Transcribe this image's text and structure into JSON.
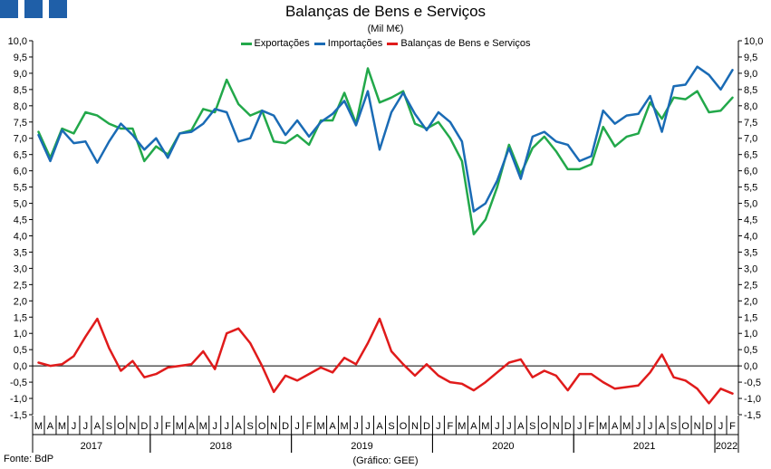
{
  "header": {
    "title": "Balanças de Bens e Serviços",
    "subtitle": "(Mil M€)",
    "squares": [
      "#1f5fa8",
      "#1f5fa8",
      "#1f5fa8"
    ]
  },
  "footer": {
    "source": "Fonte: BdP",
    "credit": "(Gráfico: GEE)"
  },
  "chart_data": {
    "type": "line",
    "title": "Balanças de Bens e Serviços",
    "subtitle": "(Mil M€)",
    "ylim": [
      -1.5,
      10.0
    ],
    "ytick_step": 0.5,
    "y_ticks": [
      "10,0",
      "9,5",
      "9,0",
      "8,5",
      "8,0",
      "7,5",
      "7,0",
      "6,5",
      "6,0",
      "5,5",
      "5,0",
      "4,5",
      "4,0",
      "3,5",
      "3,0",
      "2,5",
      "2,0",
      "1,5",
      "1,0",
      "0,5",
      "0,0",
      "-0,5",
      "-1,0",
      "-1,5"
    ],
    "grid": false,
    "legend_position": "top-center",
    "month_labels": [
      "M",
      "A",
      "M",
      "J",
      "J",
      "A",
      "S",
      "O",
      "N",
      "D",
      "J",
      "F",
      "M",
      "A",
      "M",
      "J",
      "J",
      "A",
      "S",
      "O",
      "N",
      "D",
      "J",
      "F",
      "M",
      "A",
      "M",
      "J",
      "J",
      "A",
      "S",
      "O",
      "N",
      "D",
      "J",
      "F",
      "M",
      "A",
      "M",
      "J",
      "J",
      "A",
      "S",
      "O",
      "N",
      "D",
      "J",
      "F",
      "M",
      "A",
      "M",
      "J",
      "J",
      "A",
      "S",
      "O",
      "N",
      "D",
      "J",
      "F"
    ],
    "years": [
      {
        "label": "2017",
        "start": 0,
        "count": 10
      },
      {
        "label": "2018",
        "start": 10,
        "count": 12
      },
      {
        "label": "2019",
        "start": 22,
        "count": 12
      },
      {
        "label": "2020",
        "start": 34,
        "count": 12
      },
      {
        "label": "2021",
        "start": 46,
        "count": 12
      },
      {
        "label": "2022",
        "start": 58,
        "count": 2
      }
    ],
    "series": [
      {
        "name": "Exportações",
        "color": "#22a84a",
        "values": [
          7.2,
          6.4,
          7.3,
          7.15,
          7.8,
          7.7,
          7.45,
          7.3,
          7.3,
          6.3,
          6.75,
          6.5,
          7.15,
          7.25,
          7.9,
          7.8,
          8.8,
          8.05,
          7.7,
          7.85,
          6.9,
          6.85,
          7.1,
          6.8,
          7.55,
          7.55,
          8.4,
          7.45,
          9.15,
          8.1,
          8.25,
          8.45,
          7.45,
          7.3,
          7.5,
          7.0,
          6.3,
          4.05,
          4.5,
          5.5,
          6.8,
          5.9,
          6.7,
          7.05,
          6.6,
          6.05,
          6.05,
          6.2,
          7.35,
          6.75,
          7.05,
          7.15,
          8.1,
          7.6,
          8.25,
          8.2,
          8.45,
          7.8,
          7.85,
          8.25
        ]
      },
      {
        "name": "Importações",
        "color": "#1a6bb5",
        "values": [
          7.1,
          6.3,
          7.25,
          6.85,
          6.9,
          6.25,
          6.9,
          7.45,
          7.1,
          6.65,
          7.0,
          6.4,
          7.15,
          7.2,
          7.45,
          7.9,
          7.8,
          6.9,
          7.0,
          7.85,
          7.7,
          7.1,
          7.55,
          7.05,
          7.5,
          7.75,
          8.15,
          7.4,
          8.45,
          6.65,
          7.8,
          8.4,
          7.75,
          7.25,
          7.8,
          7.5,
          6.9,
          4.75,
          5.0,
          5.7,
          6.7,
          5.75,
          7.05,
          7.2,
          6.9,
          6.8,
          6.3,
          6.45,
          7.85,
          7.45,
          7.7,
          7.75,
          8.3,
          7.2,
          8.6,
          8.65,
          9.2,
          8.95,
          8.5,
          9.1
        ]
      },
      {
        "name": "Balanças de Bens e Serviços",
        "color": "#e01b1b",
        "values": [
          0.1,
          0.0,
          0.05,
          0.3,
          0.9,
          1.45,
          0.55,
          -0.15,
          0.15,
          -0.35,
          -0.25,
          -0.05,
          0.0,
          0.05,
          0.45,
          -0.1,
          1.0,
          1.15,
          0.7,
          0.0,
          -0.8,
          -0.3,
          -0.45,
          -0.25,
          -0.05,
          -0.2,
          0.25,
          0.05,
          0.7,
          1.45,
          0.45,
          0.05,
          -0.3,
          0.05,
          -0.3,
          -0.5,
          -0.55,
          -0.75,
          -0.5,
          -0.2,
          0.1,
          0.2,
          -0.35,
          -0.15,
          -0.3,
          -0.75,
          -0.25,
          -0.25,
          -0.5,
          -0.7,
          -0.65,
          -0.6,
          -0.2,
          0.35,
          -0.35,
          -0.45,
          -0.7,
          -1.15,
          -0.7,
          -0.85
        ]
      }
    ]
  }
}
